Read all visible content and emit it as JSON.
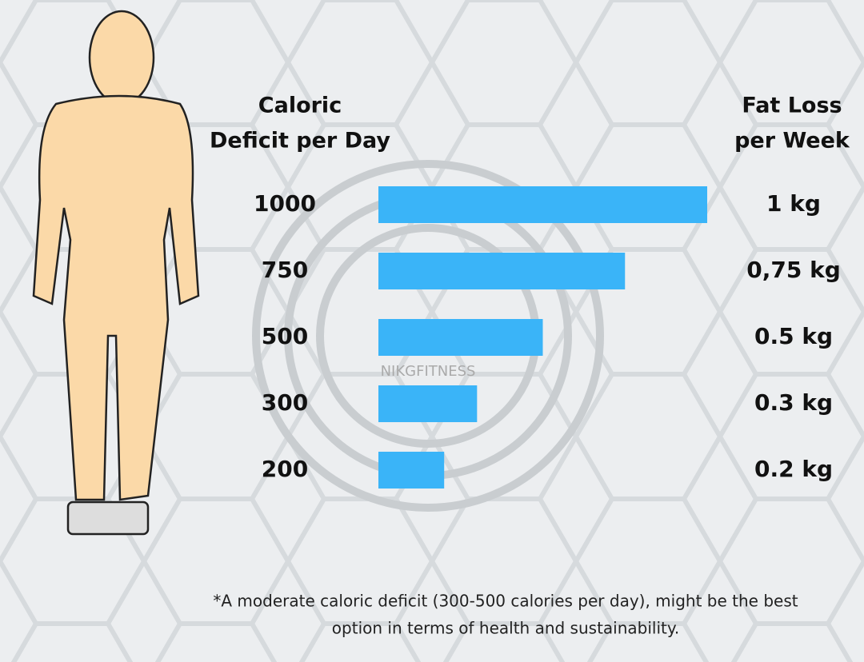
{
  "chart_data": {
    "type": "bar",
    "orientation": "horizontal",
    "category_header": [
      "Caloric",
      "Deficit per Day"
    ],
    "value_header": [
      "Fat Loss",
      "per Week"
    ],
    "categories": [
      "1000",
      "750",
      "500",
      "300",
      "200"
    ],
    "values": [
      1,
      0.75,
      0.5,
      0.3,
      0.2
    ],
    "value_labels": [
      "1 kg",
      "0,75 kg",
      "0.5 kg",
      "0.3 kg",
      "0.2 kg"
    ],
    "color": "#3ab4f8",
    "watermark": "NIKGFITNESS",
    "footnote": [
      "*A moderate caloric deficit (300-500 calories per day), might be the best",
      "option in terms of health and sustainability."
    ]
  }
}
